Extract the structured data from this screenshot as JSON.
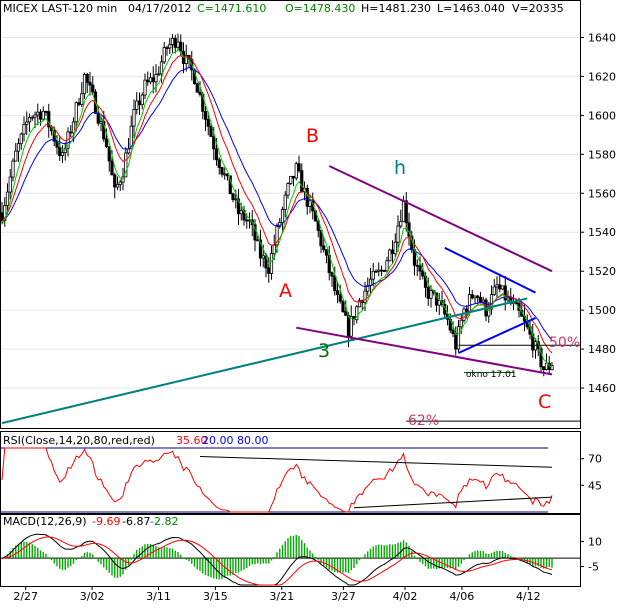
{
  "colors": {
    "frame": "#000000",
    "candle": "#000000",
    "ma_fast": "#00cc00",
    "ma_mid": "#ff0000",
    "ma_slow": "#0000ff",
    "trend_teal": "#008080",
    "trend_purple": "#800080",
    "trend_blue": "#0000ff",
    "label_red": "#ff0000",
    "label_green": "#007000",
    "label_teal": "#008080",
    "label_pink": "#cc3366",
    "rsi": "#ff0000",
    "rsi_trend": "#000000",
    "rsi_level": "#000080",
    "macd": "#000000",
    "macd_signal": "#ff0000",
    "macd_hist": "#00aa00"
  },
  "header": {
    "name": "MICEX LAST-120 min",
    "date": "04/17/2012",
    "close": "C=1471.610",
    "open": "O=1478.430",
    "high": "H=1481.230",
    "low": "L=1463.040",
    "volume": "V=20335"
  },
  "rsi_header": {
    "label": "RSI(Close,14,20,80,red,red)",
    "value": "35.60",
    "low": "20.00",
    "high": "80.00"
  },
  "macd_header": {
    "label": "MACD(12,26,9)",
    "macd": "-9.69",
    "signal": "-6.87",
    "hist": "-2.82"
  },
  "annotations": {
    "A": "A",
    "B": "B",
    "C": "C",
    "h": "h",
    "three": "3",
    "pct50": "50%",
    "pct62": "62%",
    "okno": "okno 17.01"
  },
  "chart_data": [
    {
      "type": "candlestick",
      "title": "MICEX LAST-120 min",
      "x_tick_labels": [
        "2/27",
        "3/02",
        "3/11",
        "3/15",
        "3/21",
        "3/27",
        "4/02",
        "4/06",
        "4/12"
      ],
      "y_ticks": [
        1460,
        1480,
        1500,
        1520,
        1540,
        1560,
        1580,
        1600,
        1620,
        1640
      ],
      "ylim": [
        1440,
        1650
      ],
      "close_path": [
        [
          0,
          1550
        ],
        [
          5,
          1580
        ],
        [
          10,
          1600
        ],
        [
          15,
          1602
        ],
        [
          18,
          1592
        ],
        [
          22,
          1578
        ],
        [
          26,
          1598
        ],
        [
          30,
          1620
        ],
        [
          34,
          1605
        ],
        [
          38,
          1585
        ],
        [
          41,
          1560
        ],
        [
          44,
          1572
        ],
        [
          48,
          1600
        ],
        [
          52,
          1615
        ],
        [
          56,
          1620
        ],
        [
          60,
          1635
        ],
        [
          64,
          1640
        ],
        [
          66,
          1630
        ],
        [
          70,
          1620
        ],
        [
          74,
          1600
        ],
        [
          78,
          1580
        ],
        [
          82,
          1565
        ],
        [
          86,
          1550
        ],
        [
          90,
          1545
        ],
        [
          94,
          1528
        ],
        [
          97,
          1522
        ],
        [
          100,
          1540
        ],
        [
          104,
          1562
        ],
        [
          107,
          1572
        ],
        [
          110,
          1560
        ],
        [
          114,
          1545
        ],
        [
          118,
          1525
        ],
        [
          122,
          1505
        ],
        [
          126,
          1490
        ],
        [
          130,
          1505
        ],
        [
          134,
          1515
        ],
        [
          138,
          1520
        ],
        [
          142,
          1533
        ],
        [
          146,
          1555
        ],
        [
          150,
          1525
        ],
        [
          154,
          1510
        ],
        [
          158,
          1505
        ],
        [
          162,
          1495
        ],
        [
          165,
          1482
        ],
        [
          168,
          1500
        ],
        [
          172,
          1510
        ],
        [
          176,
          1500
        ],
        [
          180,
          1512
        ],
        [
          184,
          1505
        ],
        [
          188,
          1498
        ],
        [
          191,
          1490
        ],
        [
          194,
          1480
        ],
        [
          197,
          1470
        ],
        [
          200,
          1471.61
        ]
      ],
      "trendlines": {
        "green_support": [
          [
            0,
            1442
          ],
          [
            191,
            1506
          ]
        ],
        "purple_top": [
          [
            119,
            1574
          ],
          [
            200,
            1520
          ]
        ],
        "purple_bottom": [
          [
            107,
            1491
          ],
          [
            200,
            1467
          ]
        ],
        "blue_upper": [
          [
            161,
            1532
          ],
          [
            194,
            1509
          ]
        ],
        "blue_lower": [
          [
            166,
            1478
          ],
          [
            194,
            1496
          ]
        ]
      },
      "levels": {
        "fib_50": 1482,
        "fib_62": 1443
      }
    },
    {
      "type": "line",
      "title": "RSI(Close,14,20,80,red,red)",
      "y_ticks": [
        45,
        70
      ],
      "ylim": [
        20,
        80
      ],
      "levels": [
        20,
        80
      ],
      "last": 35.6
    },
    {
      "type": "line",
      "title": "MACD(12,26,9)",
      "y_ticks": [
        -5,
        10
      ],
      "ylim": [
        -16,
        18
      ],
      "last_macd": -9.69,
      "last_signal": -6.87,
      "last_hist": -2.82
    }
  ]
}
